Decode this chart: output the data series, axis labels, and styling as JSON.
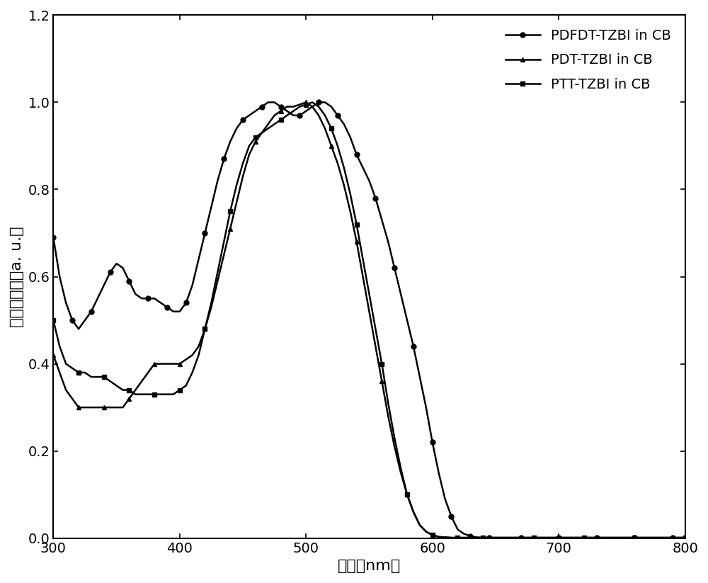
{
  "title": "",
  "xlabel": "波长（nm）",
  "ylabel": "归一化吸收（a. u.）",
  "xlim": [
    300,
    800
  ],
  "ylim": [
    0,
    1.2
  ],
  "xticks": [
    300,
    400,
    500,
    600,
    700,
    800
  ],
  "yticks": [
    0,
    0.2,
    0.4,
    0.6,
    0.8,
    1.0,
    1.2
  ],
  "legend_labels": [
    "PDFDT-TZBI in CB",
    "PDT-TZBI in CB",
    "PTT-TZBI in CB"
  ],
  "line_color": "#000000",
  "background_color": "#ffffff",
  "PDFDT_x": [
    300,
    305,
    310,
    315,
    320,
    325,
    330,
    335,
    340,
    345,
    350,
    355,
    360,
    365,
    370,
    375,
    380,
    385,
    390,
    395,
    400,
    405,
    410,
    415,
    420,
    425,
    430,
    435,
    440,
    445,
    450,
    455,
    460,
    465,
    470,
    475,
    480,
    485,
    490,
    495,
    500,
    505,
    510,
    515,
    520,
    525,
    530,
    535,
    540,
    545,
    550,
    555,
    560,
    565,
    570,
    575,
    580,
    585,
    590,
    595,
    600,
    605,
    610,
    615,
    620,
    625,
    630,
    635,
    640,
    645,
    650,
    660,
    670,
    680,
    690,
    700,
    710,
    720,
    730,
    740,
    750,
    760,
    770,
    780,
    790,
    800
  ],
  "PDFDT_y": [
    0.69,
    0.6,
    0.54,
    0.5,
    0.48,
    0.5,
    0.52,
    0.55,
    0.58,
    0.61,
    0.63,
    0.62,
    0.59,
    0.56,
    0.55,
    0.55,
    0.55,
    0.54,
    0.53,
    0.52,
    0.52,
    0.54,
    0.58,
    0.64,
    0.7,
    0.76,
    0.82,
    0.87,
    0.91,
    0.94,
    0.96,
    0.97,
    0.98,
    0.99,
    1.0,
    1.0,
    0.99,
    0.98,
    0.97,
    0.97,
    0.98,
    0.99,
    1.0,
    1.0,
    0.99,
    0.97,
    0.95,
    0.92,
    0.88,
    0.85,
    0.82,
    0.78,
    0.73,
    0.68,
    0.62,
    0.56,
    0.5,
    0.44,
    0.37,
    0.3,
    0.22,
    0.15,
    0.09,
    0.05,
    0.02,
    0.01,
    0.005,
    0.002,
    0.001,
    0.001,
    0.001,
    0.001,
    0.001,
    0.001,
    0.001,
    0.001,
    0.001,
    0.001,
    0.001,
    0.001,
    0.001,
    0.001,
    0.001,
    0.001,
    0.001,
    0.001
  ],
  "PDT_x": [
    300,
    305,
    310,
    315,
    320,
    325,
    330,
    335,
    340,
    345,
    350,
    355,
    360,
    365,
    370,
    375,
    380,
    385,
    390,
    395,
    400,
    405,
    410,
    415,
    420,
    425,
    430,
    435,
    440,
    445,
    450,
    455,
    460,
    465,
    470,
    475,
    480,
    485,
    490,
    495,
    500,
    505,
    510,
    515,
    520,
    525,
    530,
    535,
    540,
    545,
    550,
    555,
    560,
    565,
    570,
    575,
    580,
    585,
    590,
    595,
    600,
    605,
    610,
    615,
    620,
    625,
    630,
    635,
    640,
    650,
    660,
    670,
    680,
    690,
    700,
    710,
    720,
    730,
    740,
    750,
    760,
    770,
    780,
    790,
    800
  ],
  "PDT_y": [
    0.42,
    0.38,
    0.34,
    0.32,
    0.3,
    0.3,
    0.3,
    0.3,
    0.3,
    0.3,
    0.3,
    0.3,
    0.32,
    0.34,
    0.36,
    0.38,
    0.4,
    0.4,
    0.4,
    0.4,
    0.4,
    0.41,
    0.42,
    0.44,
    0.48,
    0.53,
    0.59,
    0.65,
    0.71,
    0.77,
    0.83,
    0.88,
    0.91,
    0.93,
    0.95,
    0.97,
    0.98,
    0.99,
    0.99,
    0.995,
    1.0,
    0.99,
    0.97,
    0.94,
    0.9,
    0.86,
    0.81,
    0.75,
    0.68,
    0.6,
    0.52,
    0.44,
    0.36,
    0.28,
    0.21,
    0.15,
    0.1,
    0.06,
    0.03,
    0.015,
    0.007,
    0.003,
    0.002,
    0.001,
    0.001,
    0.001,
    0.001,
    0.001,
    0.001,
    0.001,
    0.001,
    0.001,
    0.001,
    0.001,
    0.001,
    0.001,
    0.001,
    0.001,
    0.001,
    0.001,
    0.001,
    0.001,
    0.001,
    0.001,
    0.001
  ],
  "PTT_x": [
    300,
    305,
    310,
    315,
    320,
    325,
    330,
    335,
    340,
    345,
    350,
    355,
    360,
    365,
    370,
    375,
    380,
    385,
    390,
    395,
    400,
    405,
    410,
    415,
    420,
    425,
    430,
    435,
    440,
    445,
    450,
    455,
    460,
    465,
    470,
    475,
    480,
    485,
    490,
    495,
    500,
    505,
    510,
    515,
    520,
    525,
    530,
    535,
    540,
    545,
    550,
    555,
    560,
    565,
    570,
    575,
    580,
    585,
    590,
    595,
    600,
    605,
    610,
    615,
    620,
    625,
    630,
    635,
    640,
    650,
    660,
    670,
    680,
    690,
    700,
    710,
    720,
    730,
    740,
    750,
    760,
    770,
    780,
    790,
    800
  ],
  "PTT_y": [
    0.5,
    0.44,
    0.4,
    0.39,
    0.38,
    0.38,
    0.37,
    0.37,
    0.37,
    0.36,
    0.35,
    0.34,
    0.34,
    0.33,
    0.33,
    0.33,
    0.33,
    0.33,
    0.33,
    0.33,
    0.34,
    0.35,
    0.38,
    0.42,
    0.48,
    0.54,
    0.61,
    0.68,
    0.75,
    0.81,
    0.86,
    0.9,
    0.92,
    0.93,
    0.94,
    0.95,
    0.96,
    0.97,
    0.98,
    0.99,
    0.995,
    1.0,
    0.99,
    0.97,
    0.94,
    0.9,
    0.85,
    0.79,
    0.72,
    0.64,
    0.56,
    0.48,
    0.4,
    0.31,
    0.23,
    0.16,
    0.1,
    0.06,
    0.03,
    0.015,
    0.007,
    0.003,
    0.002,
    0.001,
    0.001,
    0.001,
    0.001,
    0.001,
    0.001,
    0.001,
    0.001,
    0.001,
    0.001,
    0.001,
    0.001,
    0.001,
    0.001,
    0.001,
    0.001,
    0.001,
    0.001,
    0.001,
    0.001,
    0.001,
    0.001
  ],
  "marker_circle": "o",
  "marker_triangle": "^",
  "marker_square": "s",
  "markersize": 5,
  "linewidth": 1.8,
  "markevery_PDFDT": 3,
  "markevery_PDT": 4,
  "markevery_PTT": 4,
  "legend_fontsize": 14,
  "axis_fontsize": 16,
  "tick_fontsize": 14
}
